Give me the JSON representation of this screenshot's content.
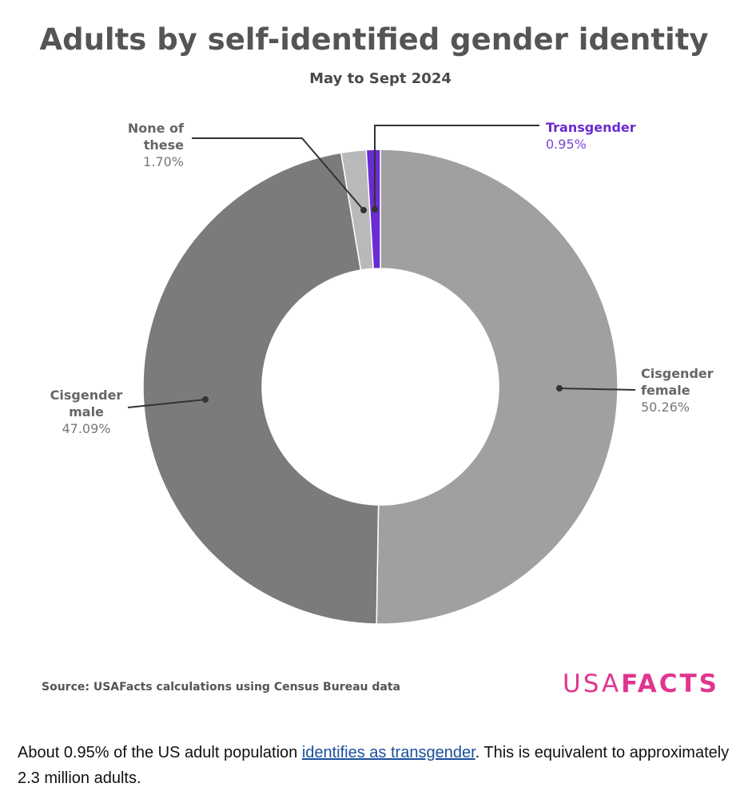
{
  "chart_data": {
    "type": "pie",
    "title": "Adults by self-identified gender identity",
    "subtitle": "May to Sept 2024",
    "slices": [
      {
        "label_lines": [
          "Cisgender",
          "female"
        ],
        "value": 50.26,
        "pct_label": "50.26%",
        "color": "#a0a0a0"
      },
      {
        "label_lines": [
          "Cisgender",
          "male"
        ],
        "value": 47.09,
        "pct_label": "47.09%",
        "color": "#7b7b7b"
      },
      {
        "label_lines": [
          "None of",
          "these"
        ],
        "value": 1.7,
        "pct_label": "1.70%",
        "color": "#b9b9b9"
      },
      {
        "label_lines": [
          "Transgender"
        ],
        "value": 0.95,
        "pct_label": "0.95%",
        "color": "#6a2bd0"
      }
    ],
    "source": "Source: USAFacts calculations using Census Bureau data",
    "logo": {
      "part1": "USA",
      "part2": "FACTS",
      "color": "#e0358f"
    }
  },
  "caption": {
    "before": "About 0.95% of the US adult population ",
    "link": "identifies as transgender",
    "after": ". This is equivalent to approximately 2.3 million adults."
  }
}
